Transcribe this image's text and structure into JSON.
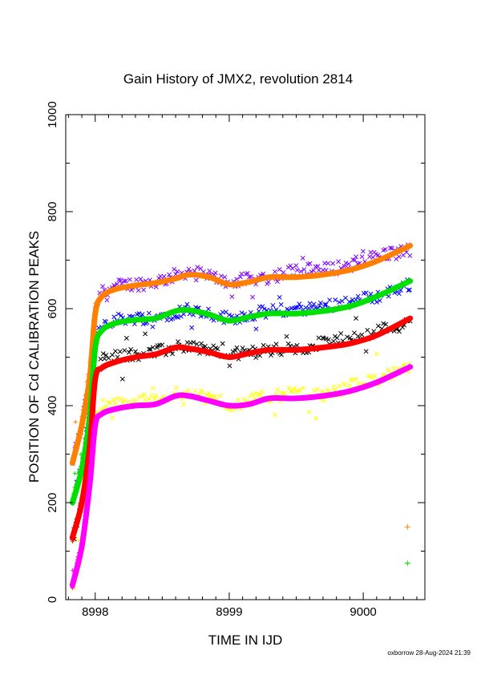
{
  "title": "Gain History of JMX2, revolution 2814",
  "footer": "oxborrow 28-Aug-2024 21:39",
  "chart_data": {
    "type": "scatter",
    "title": "Gain History of JMX2, revolution 2814",
    "xlabel": "TIME IN IJD",
    "ylabel": "POSITION OF Cd CALIBRATION PEAKS",
    "xlim": [
      8997.78,
      9000.46
    ],
    "ylim": [
      0,
      1000
    ],
    "x_ticks": [
      "8998",
      "8999",
      "9000"
    ],
    "x_tick_values": [
      8998,
      8999,
      9000
    ],
    "y_ticks": [
      "0",
      "200",
      "400",
      "600",
      "800",
      "1000"
    ],
    "y_tick_values": [
      0,
      200,
      400,
      600,
      800,
      1000
    ],
    "grid": false,
    "legend": "none",
    "fits": [
      {
        "color": "#ff8000",
        "x": [
          8997.83,
          8997.9,
          8997.96,
          8998.0,
          8998.05,
          8998.15,
          8998.3,
          8998.45,
          8998.6,
          8998.7,
          8998.85,
          8999.0,
          8999.15,
          8999.3,
          8999.5,
          8999.7,
          8999.9,
          9000.1,
          9000.35
        ],
        "y": [
          282,
          360,
          460,
          590,
          625,
          640,
          648,
          653,
          662,
          670,
          665,
          650,
          655,
          665,
          665,
          670,
          680,
          698,
          730
        ]
      },
      {
        "color": "#00e000",
        "x": [
          8997.83,
          8997.9,
          8997.96,
          8998.0,
          8998.05,
          8998.15,
          8998.3,
          8998.45,
          8998.6,
          8998.7,
          8998.85,
          8999.0,
          8999.15,
          8999.3,
          8999.5,
          8999.7,
          8999.9,
          9000.1,
          9000.35
        ],
        "y": [
          200,
          270,
          380,
          520,
          555,
          570,
          577,
          580,
          595,
          597,
          588,
          575,
          583,
          590,
          590,
          595,
          605,
          625,
          657
        ]
      },
      {
        "color": "#ff0000",
        "x": [
          8997.83,
          8997.9,
          8997.96,
          8998.0,
          8998.05,
          8998.15,
          8998.3,
          8998.45,
          8998.6,
          8998.7,
          8998.85,
          8999.0,
          8999.15,
          8999.3,
          8999.5,
          8999.7,
          8999.9,
          9000.1,
          9000.35
        ],
        "y": [
          128,
          200,
          320,
          455,
          478,
          490,
          500,
          506,
          520,
          518,
          510,
          500,
          508,
          515,
          515,
          520,
          528,
          545,
          580
        ]
      },
      {
        "color": "#ff00ff",
        "x": [
          8997.83,
          8997.9,
          8997.96,
          8998.0,
          8998.05,
          8998.15,
          8998.3,
          8998.45,
          8998.6,
          8998.7,
          8998.85,
          8999.0,
          8999.15,
          8999.3,
          8999.5,
          8999.7,
          8999.9,
          9000.1,
          9000.35
        ],
        "y": [
          30,
          110,
          240,
          360,
          383,
          393,
          400,
          403,
          420,
          420,
          410,
          400,
          403,
          415,
          415,
          420,
          430,
          448,
          480
        ]
      }
    ],
    "scatter": [
      {
        "color": "#8000ff",
        "marker": "x",
        "base": [
          [
            8997.83,
            285
          ],
          [
            8997.9,
            360
          ],
          [
            8997.96,
            470
          ],
          [
            8998.0,
            600
          ],
          [
            8998.05,
            640
          ],
          [
            8998.2,
            648
          ],
          [
            8998.45,
            655
          ],
          [
            8998.7,
            678
          ],
          [
            8999.0,
            655
          ],
          [
            8999.3,
            665
          ],
          [
            8999.5,
            680
          ],
          [
            8999.7,
            680
          ],
          [
            8999.9,
            690
          ],
          [
            9000.1,
            710
          ],
          [
            9000.35,
            720
          ]
        ],
        "spread": 14,
        "count": 190
      },
      {
        "color": "#0000ff",
        "marker": "x",
        "base": [
          [
            8997.83,
            200
          ],
          [
            8997.9,
            270
          ],
          [
            8997.96,
            390
          ],
          [
            8998.0,
            540
          ],
          [
            8998.05,
            570
          ],
          [
            8998.2,
            580
          ],
          [
            8998.45,
            582
          ],
          [
            8998.7,
            600
          ],
          [
            8999.0,
            580
          ],
          [
            8999.3,
            595
          ],
          [
            8999.5,
            598
          ],
          [
            8999.7,
            605
          ],
          [
            8999.9,
            615
          ],
          [
            9000.1,
            625
          ],
          [
            9000.35,
            650
          ]
        ],
        "spread": 13,
        "count": 190
      },
      {
        "color": "#000000",
        "marker": "x",
        "base": [
          [
            8997.83,
            120
          ],
          [
            8997.9,
            200
          ],
          [
            8997.96,
            330
          ],
          [
            8998.0,
            470
          ],
          [
            8998.05,
            495
          ],
          [
            8998.2,
            505
          ],
          [
            8998.45,
            510
          ],
          [
            8998.7,
            525
          ],
          [
            8999.0,
            505
          ],
          [
            8999.3,
            515
          ],
          [
            8999.5,
            515
          ],
          [
            8999.7,
            530
          ],
          [
            8999.9,
            540
          ],
          [
            9000.1,
            555
          ],
          [
            9000.35,
            570
          ]
        ],
        "spread": 13,
        "count": 190
      },
      {
        "color": "#ffff00",
        "marker": "x",
        "base": [
          [
            8997.83,
            20
          ],
          [
            8997.9,
            100
          ],
          [
            8997.96,
            230
          ],
          [
            8998.0,
            380
          ],
          [
            8998.05,
            400
          ],
          [
            8998.2,
            405
          ],
          [
            8998.45,
            415
          ],
          [
            8998.7,
            430
          ],
          [
            8999.0,
            400
          ],
          [
            8999.3,
            420
          ],
          [
            8999.5,
            425
          ],
          [
            8999.7,
            420
          ],
          [
            8999.9,
            440
          ],
          [
            9000.1,
            455
          ],
          [
            9000.35,
            475
          ]
        ],
        "spread": 13,
        "count": 190
      },
      {
        "color": "#ff8000",
        "marker": "+",
        "base": [
          [
            8997.83,
            290
          ],
          [
            8997.9,
            370
          ],
          [
            8997.96,
            480
          ],
          [
            8998.0,
            600
          ]
        ],
        "spread": 12,
        "count": 34
      },
      {
        "color": "#00e000",
        "marker": "+",
        "base": [
          [
            8997.83,
            205
          ],
          [
            8997.9,
            275
          ],
          [
            8997.96,
            395
          ],
          [
            8998.0,
            530
          ]
        ],
        "spread": 12,
        "count": 34
      },
      {
        "color": "#ff0000",
        "marker": "+",
        "base": [
          [
            8997.83,
            130
          ],
          [
            8997.9,
            205
          ],
          [
            8997.96,
            330
          ],
          [
            8998.0,
            460
          ]
        ],
        "spread": 12,
        "count": 34
      },
      {
        "color": "#ff00ff",
        "marker": "+",
        "base": [
          [
            8997.83,
            30
          ],
          [
            8997.9,
            115
          ],
          [
            8997.96,
            245
          ],
          [
            8998.0,
            365
          ]
        ],
        "spread": 12,
        "count": 34
      }
    ],
    "outliers": [
      {
        "color": "#ff8000",
        "marker": "+",
        "x": 9000.33,
        "y": 150
      },
      {
        "color": "#00e000",
        "marker": "+",
        "x": 9000.33,
        "y": 75
      }
    ]
  }
}
